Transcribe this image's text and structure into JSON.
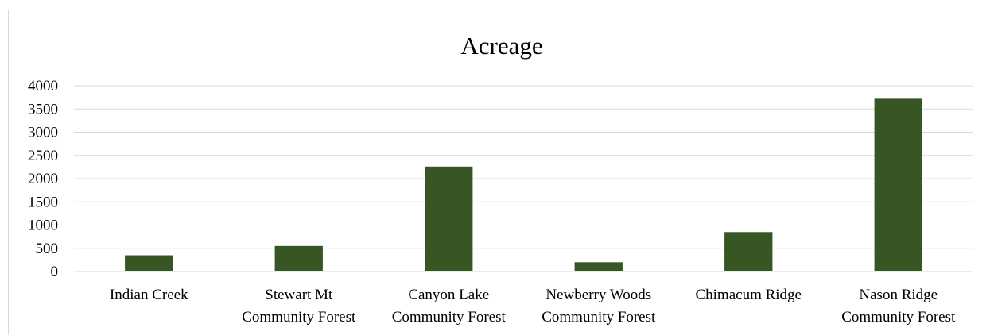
{
  "chart_data": {
    "type": "bar",
    "title": "Acreage",
    "xlabel": "",
    "ylabel": "",
    "categories": [
      [
        "Indian Creek"
      ],
      [
        "Stewart Mt",
        "Community Forest"
      ],
      [
        "Canyon Lake",
        "Community Forest"
      ],
      [
        "Newberry Woods",
        "Community Forest"
      ],
      [
        "Chimacum Ridge"
      ],
      [
        "Nason Ridge",
        "Community Forest"
      ]
    ],
    "values": [
      350,
      550,
      2260,
      200,
      850,
      3720
    ],
    "ylim": [
      0,
      4000
    ],
    "yticks": [
      0,
      500,
      1000,
      1500,
      2000,
      2500,
      3000,
      3500,
      4000
    ],
    "grid": true,
    "legend": "none",
    "bar_color": "#375623",
    "grid_color": "#d9d9d9"
  }
}
